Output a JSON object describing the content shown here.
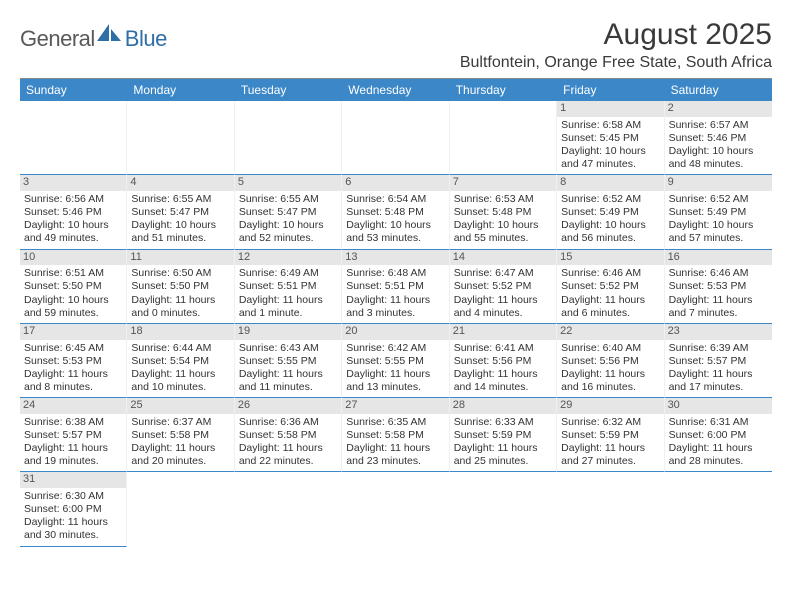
{
  "logo": {
    "part1": "General",
    "part2": "Blue"
  },
  "title": "August 2025",
  "location": "Bultfontein, Orange Free State, South Africa",
  "weekdays": [
    "Sunday",
    "Monday",
    "Tuesday",
    "Wednesday",
    "Thursday",
    "Friday",
    "Saturday"
  ],
  "colors": {
    "header_bg": "#3b87c8",
    "header_text": "#ffffff",
    "daynum_bg": "#e6e6e6",
    "rule": "#3b87c8"
  },
  "first_weekday_index": 5,
  "days": [
    {
      "n": "1",
      "sunrise": "6:58 AM",
      "sunset": "5:45 PM",
      "daylight": "10 hours and 47 minutes."
    },
    {
      "n": "2",
      "sunrise": "6:57 AM",
      "sunset": "5:46 PM",
      "daylight": "10 hours and 48 minutes."
    },
    {
      "n": "3",
      "sunrise": "6:56 AM",
      "sunset": "5:46 PM",
      "daylight": "10 hours and 49 minutes."
    },
    {
      "n": "4",
      "sunrise": "6:55 AM",
      "sunset": "5:47 PM",
      "daylight": "10 hours and 51 minutes."
    },
    {
      "n": "5",
      "sunrise": "6:55 AM",
      "sunset": "5:47 PM",
      "daylight": "10 hours and 52 minutes."
    },
    {
      "n": "6",
      "sunrise": "6:54 AM",
      "sunset": "5:48 PM",
      "daylight": "10 hours and 53 minutes."
    },
    {
      "n": "7",
      "sunrise": "6:53 AM",
      "sunset": "5:48 PM",
      "daylight": "10 hours and 55 minutes."
    },
    {
      "n": "8",
      "sunrise": "6:52 AM",
      "sunset": "5:49 PM",
      "daylight": "10 hours and 56 minutes."
    },
    {
      "n": "9",
      "sunrise": "6:52 AM",
      "sunset": "5:49 PM",
      "daylight": "10 hours and 57 minutes."
    },
    {
      "n": "10",
      "sunrise": "6:51 AM",
      "sunset": "5:50 PM",
      "daylight": "10 hours and 59 minutes."
    },
    {
      "n": "11",
      "sunrise": "6:50 AM",
      "sunset": "5:50 PM",
      "daylight": "11 hours and 0 minutes."
    },
    {
      "n": "12",
      "sunrise": "6:49 AM",
      "sunset": "5:51 PM",
      "daylight": "11 hours and 1 minute."
    },
    {
      "n": "13",
      "sunrise": "6:48 AM",
      "sunset": "5:51 PM",
      "daylight": "11 hours and 3 minutes."
    },
    {
      "n": "14",
      "sunrise": "6:47 AM",
      "sunset": "5:52 PM",
      "daylight": "11 hours and 4 minutes."
    },
    {
      "n": "15",
      "sunrise": "6:46 AM",
      "sunset": "5:52 PM",
      "daylight": "11 hours and 6 minutes."
    },
    {
      "n": "16",
      "sunrise": "6:46 AM",
      "sunset": "5:53 PM",
      "daylight": "11 hours and 7 minutes."
    },
    {
      "n": "17",
      "sunrise": "6:45 AM",
      "sunset": "5:53 PM",
      "daylight": "11 hours and 8 minutes."
    },
    {
      "n": "18",
      "sunrise": "6:44 AM",
      "sunset": "5:54 PM",
      "daylight": "11 hours and 10 minutes."
    },
    {
      "n": "19",
      "sunrise": "6:43 AM",
      "sunset": "5:55 PM",
      "daylight": "11 hours and 11 minutes."
    },
    {
      "n": "20",
      "sunrise": "6:42 AM",
      "sunset": "5:55 PM",
      "daylight": "11 hours and 13 minutes."
    },
    {
      "n": "21",
      "sunrise": "6:41 AM",
      "sunset": "5:56 PM",
      "daylight": "11 hours and 14 minutes."
    },
    {
      "n": "22",
      "sunrise": "6:40 AM",
      "sunset": "5:56 PM",
      "daylight": "11 hours and 16 minutes."
    },
    {
      "n": "23",
      "sunrise": "6:39 AM",
      "sunset": "5:57 PM",
      "daylight": "11 hours and 17 minutes."
    },
    {
      "n": "24",
      "sunrise": "6:38 AM",
      "sunset": "5:57 PM",
      "daylight": "11 hours and 19 minutes."
    },
    {
      "n": "25",
      "sunrise": "6:37 AM",
      "sunset": "5:58 PM",
      "daylight": "11 hours and 20 minutes."
    },
    {
      "n": "26",
      "sunrise": "6:36 AM",
      "sunset": "5:58 PM",
      "daylight": "11 hours and 22 minutes."
    },
    {
      "n": "27",
      "sunrise": "6:35 AM",
      "sunset": "5:58 PM",
      "daylight": "11 hours and 23 minutes."
    },
    {
      "n": "28",
      "sunrise": "6:33 AM",
      "sunset": "5:59 PM",
      "daylight": "11 hours and 25 minutes."
    },
    {
      "n": "29",
      "sunrise": "6:32 AM",
      "sunset": "5:59 PM",
      "daylight": "11 hours and 27 minutes."
    },
    {
      "n": "30",
      "sunrise": "6:31 AM",
      "sunset": "6:00 PM",
      "daylight": "11 hours and 28 minutes."
    },
    {
      "n": "31",
      "sunrise": "6:30 AM",
      "sunset": "6:00 PM",
      "daylight": "11 hours and 30 minutes."
    }
  ],
  "labels": {
    "sunrise": "Sunrise: ",
    "sunset": "Sunset: ",
    "daylight": "Daylight: "
  }
}
